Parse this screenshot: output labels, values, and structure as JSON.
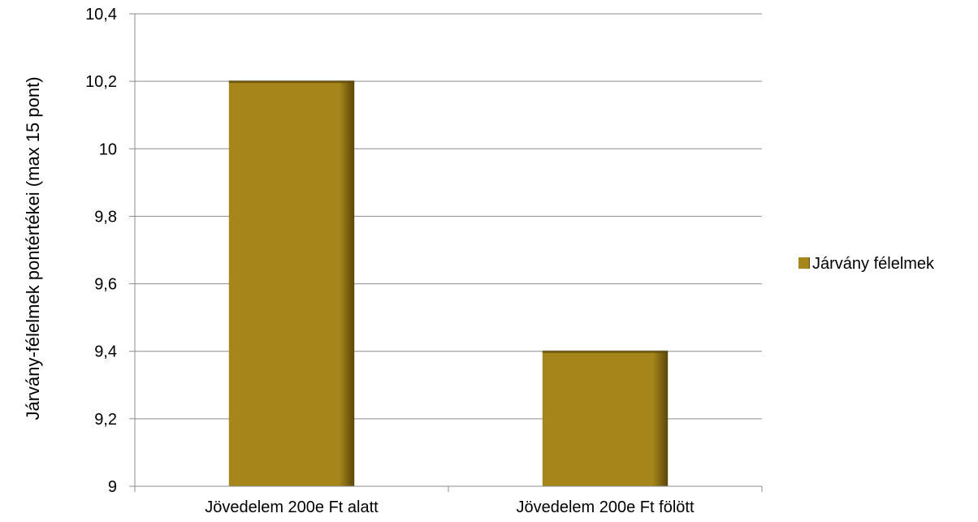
{
  "chart_data": {
    "type": "bar",
    "categories": [
      "Jövedelem 200e Ft alatt",
      "Jövedelem 200e Ft fölött"
    ],
    "series": [
      {
        "name": "Járvány félelmek",
        "values": [
          10.2,
          9.4
        ]
      }
    ],
    "xlabel": "",
    "ylabel": "Járvány-félelmek  pontértékei (max 15 pont)",
    "ylim": [
      9,
      10.4
    ],
    "yticks": [
      "9",
      "9,2",
      "9,4",
      "9,6",
      "9,8",
      "10",
      "10,2",
      "10,4"
    ],
    "grid": true,
    "legend_position": "right",
    "colors": {
      "bar": "#a6861a",
      "bar_dark": "#5a4608",
      "grid": "#8c8c8c",
      "axis": "#8c8c8c"
    }
  }
}
